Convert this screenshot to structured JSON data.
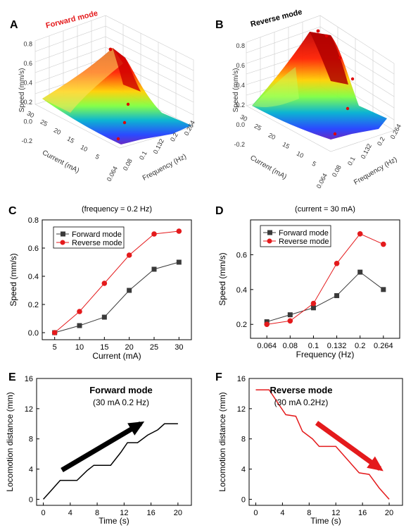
{
  "colors": {
    "forward": "#3a3a3a",
    "reverse": "#e41a1c",
    "surface_red": "#e00000",
    "surface_blue": "#3030d0"
  },
  "chart_data": [
    {
      "panel": "A",
      "type": "surface3d",
      "title": "Forward mode",
      "xlabel": "Frequency (Hz)",
      "ylabel": "Current (mA)",
      "zlabel": "Speed (mm/s)",
      "x_ticks": [
        "0.064",
        "0.08",
        "0.1",
        "0.132",
        "0.2",
        "0.264"
      ],
      "y_ticks": [
        "5",
        "10",
        "15",
        "20",
        "25",
        "30"
      ],
      "z_ticks": [
        "-0.2",
        "0.0",
        "0.2",
        "0.4",
        "0.6",
        "0.8"
      ],
      "zlim": [
        -0.2,
        0.8
      ]
    },
    {
      "panel": "B",
      "type": "surface3d",
      "title": "Reverse mode",
      "xlabel": "Frequency (Hz)",
      "ylabel": "Current (mA)",
      "zlabel": "Speed (mm/s)",
      "x_ticks": [
        "0.064",
        "0.08",
        "0.1",
        "0.132",
        "0.2",
        "0.264"
      ],
      "y_ticks": [
        "5",
        "10",
        "15",
        "20",
        "25",
        "30"
      ],
      "z_ticks": [
        "-0.2",
        "0.0",
        "0.2",
        "0.4",
        "0.6",
        "0.8"
      ],
      "zlim": [
        -0.2,
        0.8
      ]
    },
    {
      "panel": "C",
      "type": "line",
      "title": "(frequency = 0.2 Hz)",
      "xlabel": "Current (mA)",
      "ylabel": "Speed (mm/s)",
      "x": [
        5,
        10,
        15,
        20,
        25,
        30
      ],
      "xlim": [
        2.5,
        32.5
      ],
      "ylim": [
        -0.05,
        0.8
      ],
      "y_ticks": [
        0.0,
        0.2,
        0.4,
        0.6,
        0.8
      ],
      "y_tick_labels": [
        "0.0",
        "0.2",
        "0.4",
        "0.6",
        "0.8"
      ],
      "legend": "top-left",
      "series": [
        {
          "name": "Forward mode",
          "marker": "square",
          "values": [
            0.0,
            0.05,
            0.11,
            0.3,
            0.45,
            0.5
          ]
        },
        {
          "name": "Reverse mode",
          "marker": "circle",
          "values": [
            0.0,
            0.15,
            0.35,
            0.55,
            0.7,
            0.72
          ]
        }
      ]
    },
    {
      "panel": "D",
      "type": "line",
      "title": "(current = 30 mA)",
      "xlabel": "Frequency (Hz)",
      "ylabel": "Speed (mm/s)",
      "categories": [
        "0.064",
        "0.08",
        "0.1",
        "0.132",
        "0.2",
        "0.264"
      ],
      "ylim": [
        0.12,
        0.8
      ],
      "y_ticks": [
        0.2,
        0.4,
        0.6
      ],
      "y_tick_labels": [
        "0.2",
        "0.4",
        "0.6"
      ],
      "legend": "top-left",
      "series": [
        {
          "name": "Forward mode",
          "marker": "square",
          "values": [
            0.215,
            0.255,
            0.295,
            0.365,
            0.5,
            0.4
          ]
        },
        {
          "name": "Reverse mode",
          "marker": "circle",
          "values": [
            0.2,
            0.22,
            0.32,
            0.55,
            0.72,
            0.66
          ]
        }
      ]
    },
    {
      "panel": "E",
      "type": "line",
      "xlabel": "Time (s)",
      "ylabel": "Locomotion distance (mm)",
      "xlim": [
        -1,
        22
      ],
      "ylim": [
        -0.8,
        16
      ],
      "x_ticks": [
        0,
        4,
        8,
        12,
        16,
        20
      ],
      "y_ticks": [
        0,
        4,
        8,
        12,
        16
      ],
      "annotation_title": "Forward mode",
      "annotation_sub": "(30 mA 0.2 Hz)",
      "series": [
        {
          "x": [
            0,
            1.2,
            2.5,
            5,
            6.5,
            7.5,
            10,
            11.5,
            12.5,
            14,
            15.5,
            17,
            18,
            20
          ],
          "y": [
            0,
            1.2,
            2.5,
            2.5,
            3.8,
            4.5,
            4.5,
            6.2,
            7.5,
            7.5,
            8.5,
            9.2,
            10,
            10
          ]
        }
      ]
    },
    {
      "panel": "F",
      "type": "line",
      "xlabel": "Time (s)",
      "ylabel": "Locomotion distance (mm)",
      "xlim": [
        -1,
        22
      ],
      "ylim": [
        -0.8,
        16
      ],
      "x_ticks": [
        0,
        4,
        8,
        12,
        16,
        20
      ],
      "y_ticks": [
        0,
        4,
        8,
        12,
        16
      ],
      "annotation_title": "Reverse mode",
      "annotation_sub": "(30 mA 0.2Hz)",
      "series": [
        {
          "x": [
            0,
            2,
            3.5,
            4.5,
            6,
            7,
            8.5,
            9.5,
            12,
            13.5,
            15.5,
            17,
            18.5,
            20
          ],
          "y": [
            14.5,
            14.5,
            12.5,
            11.2,
            11,
            9,
            8,
            7,
            7,
            5.5,
            3.5,
            3.3,
            1.5,
            0
          ]
        }
      ]
    }
  ]
}
